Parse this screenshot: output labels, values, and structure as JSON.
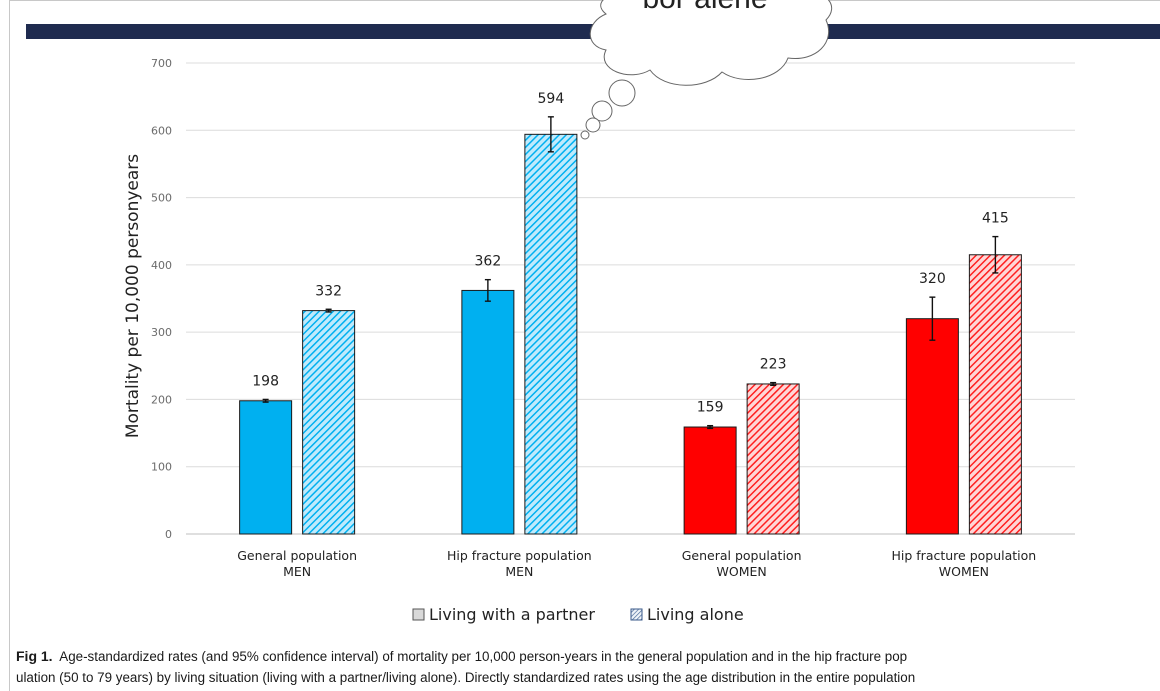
{
  "chart_data": {
    "type": "bar",
    "title": "",
    "ylabel": "Mortality per 10,000 personyears",
    "xlabel": "",
    "ylim": [
      0,
      700
    ],
    "yticks": [
      0,
      100,
      200,
      300,
      400,
      500,
      600,
      700
    ],
    "grid": true,
    "categories": [
      [
        "General population",
        "MEN"
      ],
      [
        "Hip fracture population",
        "MEN"
      ],
      [
        "General population",
        "WOMEN"
      ],
      [
        "Hip fracture population",
        "WOMEN"
      ]
    ],
    "series": [
      {
        "name": "Living with a partner",
        "values": [
          198,
          362,
          159,
          320
        ],
        "ci_low": [
          196,
          346,
          157,
          288
        ],
        "ci_high": [
          200,
          378,
          161,
          352
        ],
        "colors": [
          "#00b0f0",
          "#00b0f0",
          "#ff0000",
          "#ff0000"
        ],
        "pattern": "solid"
      },
      {
        "name": "Living alone",
        "values": [
          332,
          594,
          223,
          415
        ],
        "ci_low": [
          330,
          568,
          221,
          388
        ],
        "ci_high": [
          334,
          620,
          225,
          442
        ],
        "colors": [
          "#00b0f0",
          "#00b0f0",
          "#ff0000",
          "#ff0000"
        ],
        "pattern": "hatched"
      }
    ],
    "legend_position": "bottom"
  },
  "annotation": {
    "cloud_text": "bor alene"
  },
  "caption": {
    "label": "Fig 1.",
    "lines": [
      "Age-standardized rates (and 95% confidence interval) of mortality per 10,000 person-years in the general population and in the hip fracture pop",
      "ulation (50 to 79 years) by living situation (living with a partner/living alone). Directly standardized rates using the age distribution in the entire population"
    ]
  }
}
